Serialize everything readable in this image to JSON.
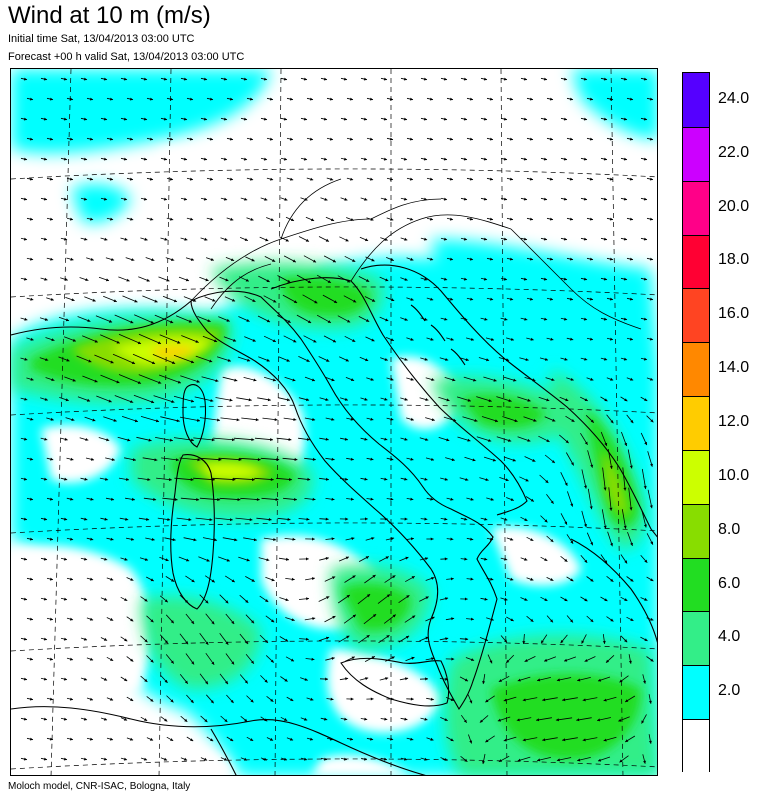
{
  "header": {
    "title": "Wind at 10 m (m/s)",
    "initial_time": "Initial time  Sat, 13/04/2013 03:00 UTC",
    "forecast": "Forecast +00 h valid  Sat, 13/04/2013 03:00 UTC"
  },
  "footer": {
    "credit": "Moloch model, CNR-ISAC, Bologna, Italy"
  },
  "legend": {
    "levels": [
      {
        "label": "",
        "color": "#ffffff"
      },
      {
        "label": "2.0",
        "color": "#00ffff"
      },
      {
        "label": "4.0",
        "color": "#33ee88"
      },
      {
        "label": "6.0",
        "color": "#22dd22"
      },
      {
        "label": "8.0",
        "color": "#88dd00"
      },
      {
        "label": "10.0",
        "color": "#ccff00"
      },
      {
        "label": "12.0",
        "color": "#ffcc00"
      },
      {
        "label": "14.0",
        "color": "#ff8800"
      },
      {
        "label": "16.0",
        "color": "#ff4422"
      },
      {
        "label": "18.0",
        "color": "#ff0033"
      },
      {
        "label": "20.0",
        "color": "#ff0088"
      },
      {
        "label": "22.0",
        "color": "#cc00ff"
      },
      {
        "label": "24.0",
        "color": "#5500ff"
      }
    ]
  },
  "map": {
    "region": "Italy and central Mediterranean",
    "field": "10 m wind speed and direction",
    "wind_zones": [
      {
        "area": "Gulf of Lion / Ligurian Sea",
        "level": "10.0"
      },
      {
        "area": "Tyrrhenian Sea between Sardinia and Italy",
        "level": "10.0"
      },
      {
        "area": "Southern Adriatic / Ionian coast of Greece",
        "level": "10.0"
      },
      {
        "area": "Central Adriatic",
        "level": "6.0"
      },
      {
        "area": "Strait of Sicily / Ionian Sea",
        "level": "6.0"
      }
    ]
  }
}
